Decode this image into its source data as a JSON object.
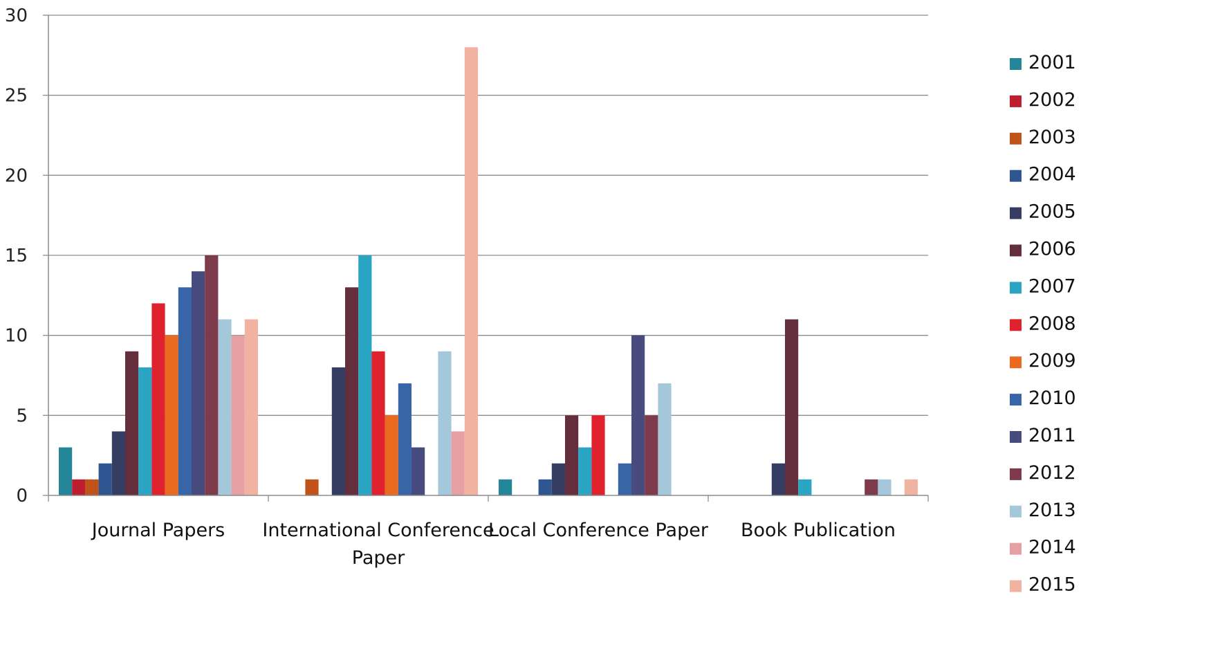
{
  "chart_data": {
    "type": "bar",
    "categories": [
      [
        "Journal Papers"
      ],
      [
        "International Conference",
        "Paper"
      ],
      [
        "Local Conference Paper"
      ],
      [
        "Book Publication"
      ]
    ],
    "ylim": [
      0,
      30
    ],
    "yticks": [
      0,
      5,
      10,
      15,
      20,
      25,
      30
    ],
    "grid": true,
    "legend_position": "right",
    "series": [
      {
        "name": "2001",
        "color": "#25869A",
        "values": [
          3,
          0,
          1,
          0
        ]
      },
      {
        "name": "2002",
        "color": "#BE1E2D",
        "values": [
          1,
          0,
          0,
          0
        ]
      },
      {
        "name": "2003",
        "color": "#C0531A",
        "values": [
          1,
          1,
          0,
          0
        ]
      },
      {
        "name": "2004",
        "color": "#2F5690",
        "values": [
          2,
          0,
          1,
          0
        ]
      },
      {
        "name": "2005",
        "color": "#363D62",
        "values": [
          4,
          8,
          2,
          2
        ]
      },
      {
        "name": "2006",
        "color": "#652E3C",
        "values": [
          9,
          13,
          5,
          11
        ]
      },
      {
        "name": "2007",
        "color": "#2BA5C4",
        "values": [
          8,
          15,
          3,
          1
        ]
      },
      {
        "name": "2008",
        "color": "#DF222D",
        "values": [
          12,
          9,
          5,
          0
        ]
      },
      {
        "name": "2009",
        "color": "#EA6A20",
        "values": [
          10,
          5,
          0,
          0
        ]
      },
      {
        "name": "2010",
        "color": "#3865A8",
        "values": [
          13,
          7,
          2,
          0
        ]
      },
      {
        "name": "2011",
        "color": "#474B7E",
        "values": [
          14,
          3,
          10,
          0
        ]
      },
      {
        "name": "2012",
        "color": "#7D3B4C",
        "values": [
          15,
          0,
          5,
          1
        ]
      },
      {
        "name": "2013",
        "color": "#A4C8DA",
        "values": [
          11,
          9,
          7,
          1
        ]
      },
      {
        "name": "2014",
        "color": "#E6A0A3",
        "values": [
          10,
          4,
          0,
          0
        ]
      },
      {
        "name": "2015",
        "color": "#F2B2A2",
        "values": [
          11,
          28,
          0,
          1
        ]
      }
    ]
  }
}
